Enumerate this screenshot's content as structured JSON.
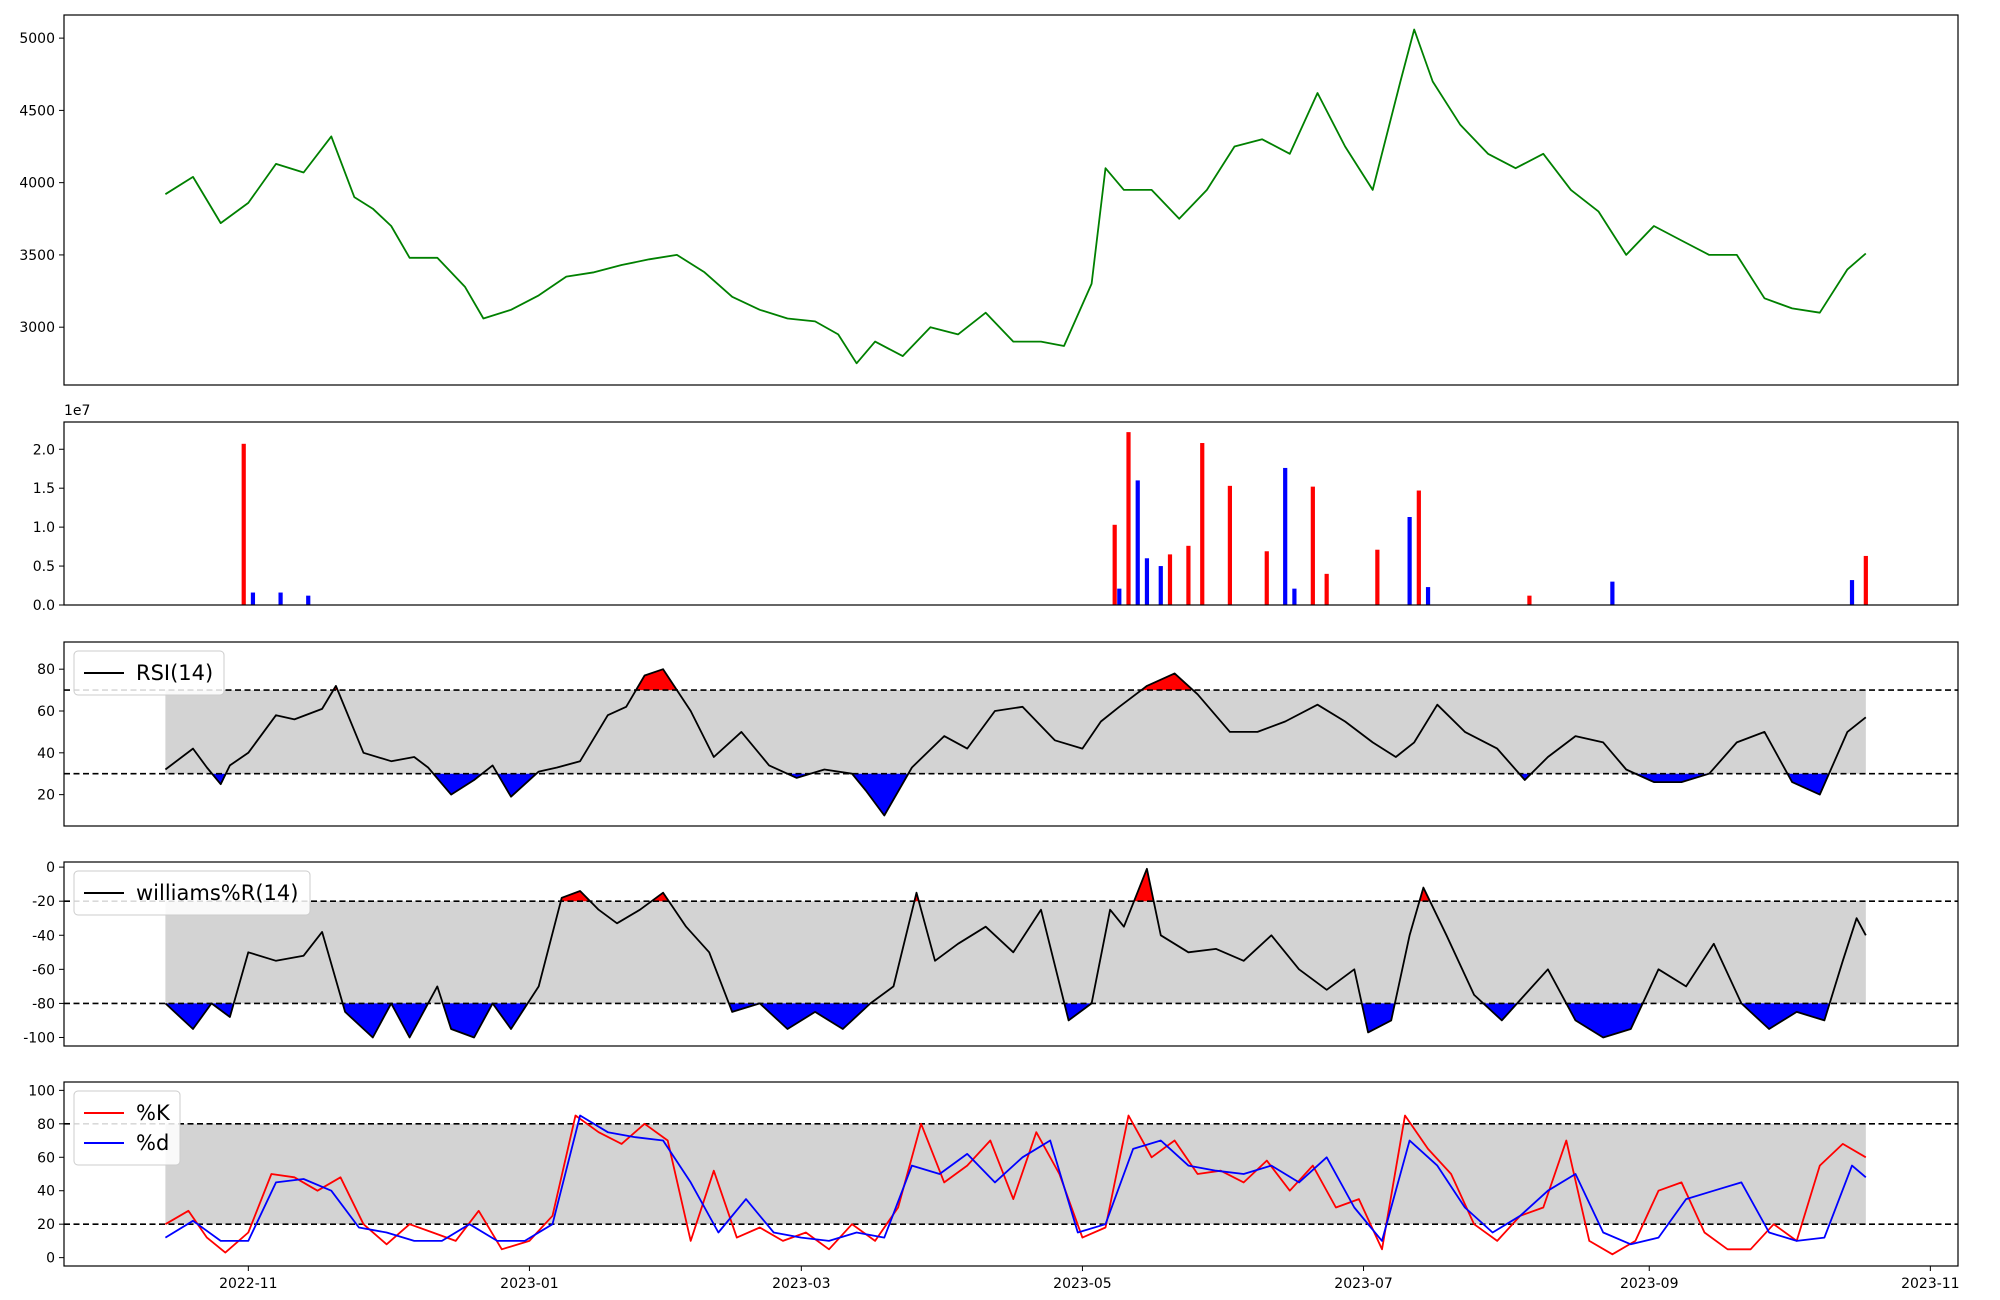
{
  "colors": {
    "close": "#008000",
    "up": "#ff0000",
    "down": "#0000ff",
    "band": "#d3d3d3",
    "line": "#000000"
  },
  "chart_data": [
    {
      "type": "line",
      "series": [
        {
          "x": [
            "2022-10-14",
            "2022-10-20",
            "2022-10-26",
            "2022-11-01",
            "2022-11-07",
            "2022-11-13",
            "2022-11-19",
            "2022-11-24",
            "2022-11-28",
            "2022-12-02",
            "2022-12-06",
            "2022-12-12",
            "2022-12-18",
            "2022-12-22",
            "2022-12-28",
            "2023-01-03",
            "2023-01-09",
            "2023-01-15",
            "2023-01-21",
            "2023-01-27",
            "2023-02-02",
            "2023-02-08",
            "2023-02-14",
            "2023-02-20",
            "2023-02-26",
            "2023-03-04",
            "2023-03-09",
            "2023-03-13",
            "2023-03-17",
            "2023-03-23",
            "2023-03-29",
            "2023-04-04",
            "2023-04-10",
            "2023-04-16",
            "2023-04-22",
            "2023-04-27",
            "2023-05-03",
            "2023-05-06",
            "2023-05-10",
            "2023-05-16",
            "2023-05-22",
            "2023-05-28",
            "2023-06-03",
            "2023-06-09",
            "2023-06-15",
            "2023-06-21",
            "2023-06-27",
            "2023-07-03",
            "2023-07-09",
            "2023-07-12",
            "2023-07-16",
            "2023-07-22",
            "2023-07-28",
            "2023-08-03",
            "2023-08-09",
            "2023-08-15",
            "2023-08-21",
            "2023-08-27",
            "2023-09-02",
            "2023-09-08",
            "2023-09-14",
            "2023-09-20",
            "2023-09-26",
            "2023-10-02",
            "2023-10-08",
            "2023-10-14",
            "2023-10-18"
          ],
          "y": [
            3920,
            4040,
            3720,
            3860,
            4130,
            4070,
            4320,
            3900,
            3820,
            3700,
            3480,
            3480,
            3280,
            3060,
            3120,
            3220,
            3350,
            3380,
            3430,
            3470,
            3500,
            3380,
            3210,
            3120,
            3060,
            3040,
            2950,
            2750,
            2900,
            2800,
            3000,
            2950,
            3100,
            2900,
            2900,
            2870,
            3300,
            4100,
            3950,
            3950,
            3750,
            3950,
            4250,
            4300,
            4200,
            4620,
            4250,
            3950,
            4700,
            5060,
            4700,
            4400,
            4200,
            4100,
            4200,
            3950,
            3800,
            3500,
            3700,
            3600,
            3500,
            3500,
            3200,
            3130,
            3100,
            3400,
            3510
          ]
        }
      ],
      "ylim": [
        2600,
        5160
      ],
      "yticks": [
        3000,
        3500,
        4000,
        4500,
        5000
      ]
    },
    {
      "type": "bar",
      "offset_label": "1e7",
      "ylim": [
        0,
        23500000
      ],
      "yticks": [
        0.0,
        0.5,
        1.0,
        1.5,
        2.0
      ],
      "series": [
        {
          "name": "",
          "direction": "up",
          "x": [
            "2022-10-31",
            "2023-05-08",
            "2023-05-11",
            "2023-05-20",
            "2023-05-24",
            "2023-05-27",
            "2023-06-02",
            "2023-06-10",
            "2023-06-20",
            "2023-06-23",
            "2023-07-04",
            "2023-07-13",
            "2023-08-06",
            "2023-10-18"
          ],
          "values": [
            20700000,
            10300000,
            22200000,
            6500000,
            7600000,
            20800000,
            15300000,
            6900000,
            15200000,
            4000000,
            7100000,
            14700000,
            1200000,
            6300000
          ]
        },
        {
          "name": "",
          "direction": "down",
          "x": [
            "2022-11-02",
            "2022-11-08",
            "2022-11-14",
            "2023-05-09",
            "2023-05-13",
            "2023-05-15",
            "2023-05-18",
            "2023-06-14",
            "2023-06-16",
            "2023-07-11",
            "2023-07-15",
            "2023-08-24",
            "2023-10-15"
          ],
          "values": [
            1600000,
            1600000,
            1200000,
            2100000,
            16000000,
            6000000,
            5000000,
            17600000,
            2100000,
            11300000,
            2300000,
            3000000,
            3200000
          ]
        }
      ]
    },
    {
      "type": "line",
      "legend": [
        "RSI(14)"
      ],
      "ylim": [
        5,
        93
      ],
      "yticks": [
        20,
        40,
        60,
        80
      ],
      "levels": [
        30,
        70
      ],
      "series": [
        {
          "name": "RSI(14)",
          "x": [
            "2022-10-14",
            "2022-10-20",
            "2022-10-23",
            "2022-10-26",
            "2022-10-28",
            "2022-11-01",
            "2022-11-07",
            "2022-11-11",
            "2022-11-17",
            "2022-11-20",
            "2022-11-26",
            "2022-12-02",
            "2022-12-07",
            "2022-12-10",
            "2022-12-15",
            "2022-12-20",
            "2022-12-24",
            "2022-12-28",
            "2023-01-03",
            "2023-01-07",
            "2023-01-12",
            "2023-01-18",
            "2023-01-22",
            "2023-01-26",
            "2023-01-30",
            "2023-02-05",
            "2023-02-10",
            "2023-02-16",
            "2023-02-22",
            "2023-02-28",
            "2023-03-06",
            "2023-03-12",
            "2023-03-15",
            "2023-03-19",
            "2023-03-25",
            "2023-04-01",
            "2023-04-06",
            "2023-04-12",
            "2023-04-18",
            "2023-04-25",
            "2023-05-01",
            "2023-05-05",
            "2023-05-09",
            "2023-05-15",
            "2023-05-21",
            "2023-05-26",
            "2023-06-02",
            "2023-06-08",
            "2023-06-14",
            "2023-06-21",
            "2023-06-27",
            "2023-07-03",
            "2023-07-08",
            "2023-07-12",
            "2023-07-17",
            "2023-07-23",
            "2023-07-30",
            "2023-08-05",
            "2023-08-10",
            "2023-08-16",
            "2023-08-22",
            "2023-08-27",
            "2023-09-02",
            "2023-09-08",
            "2023-09-14",
            "2023-09-20",
            "2023-09-26",
            "2023-10-02",
            "2023-10-08",
            "2023-10-14",
            "2023-10-18"
          ],
          "y": [
            32,
            42,
            33,
            25,
            34,
            40,
            58,
            56,
            61,
            72,
            40,
            36,
            38,
            33,
            20,
            27,
            34,
            19,
            31,
            33,
            36,
            58,
            62,
            77,
            80,
            60,
            38,
            50,
            34,
            28,
            32,
            30,
            22,
            10,
            33,
            48,
            42,
            60,
            62,
            46,
            42,
            55,
            62,
            72,
            78,
            68,
            50,
            50,
            55,
            63,
            55,
            45,
            38,
            45,
            63,
            50,
            42,
            27,
            38,
            48,
            45,
            32,
            26,
            26,
            30,
            45,
            50,
            26,
            20,
            50,
            57
          ]
        }
      ]
    },
    {
      "type": "line",
      "legend": [
        "williams%R(14)"
      ],
      "ylim": [
        -105,
        3
      ],
      "yticks": [
        0,
        -20,
        -40,
        -60,
        -80,
        -100
      ],
      "levels": [
        -20,
        -80
      ],
      "series": [
        {
          "name": "williams%R(14)",
          "x": [
            "2022-10-14",
            "2022-10-20",
            "2022-10-24",
            "2022-10-28",
            "2022-11-01",
            "2022-11-07",
            "2022-11-13",
            "2022-11-17",
            "2022-11-22",
            "2022-11-28",
            "2022-12-02",
            "2022-12-06",
            "2022-12-12",
            "2022-12-15",
            "2022-12-20",
            "2022-12-24",
            "2022-12-28",
            "2023-01-03",
            "2023-01-08",
            "2023-01-12",
            "2023-01-16",
            "2023-01-20",
            "2023-01-25",
            "2023-01-30",
            "2023-02-04",
            "2023-02-09",
            "2023-02-14",
            "2023-02-20",
            "2023-02-26",
            "2023-03-04",
            "2023-03-10",
            "2023-03-16",
            "2023-03-21",
            "2023-03-26",
            "2023-03-30",
            "2023-04-04",
            "2023-04-10",
            "2023-04-16",
            "2023-04-22",
            "2023-04-28",
            "2023-05-03",
            "2023-05-07",
            "2023-05-10",
            "2023-05-15",
            "2023-05-18",
            "2023-05-24",
            "2023-05-30",
            "2023-06-05",
            "2023-06-11",
            "2023-06-17",
            "2023-06-23",
            "2023-06-29",
            "2023-07-02",
            "2023-07-07",
            "2023-07-11",
            "2023-07-14",
            "2023-07-19",
            "2023-07-25",
            "2023-07-31",
            "2023-08-05",
            "2023-08-10",
            "2023-08-16",
            "2023-08-22",
            "2023-08-28",
            "2023-09-03",
            "2023-09-09",
            "2023-09-15",
            "2023-09-21",
            "2023-09-27",
            "2023-10-03",
            "2023-10-09",
            "2023-10-13",
            "2023-10-16",
            "2023-10-18"
          ],
          "y": [
            -80,
            -95,
            -80,
            -88,
            -50,
            -55,
            -52,
            -38,
            -85,
            -100,
            -80,
            -100,
            -70,
            -95,
            -100,
            -80,
            -95,
            -70,
            -18,
            -14,
            -25,
            -33,
            -25,
            -15,
            -35,
            -50,
            -85,
            -80,
            -95,
            -85,
            -95,
            -80,
            -70,
            -15,
            -55,
            -45,
            -35,
            -50,
            -25,
            -90,
            -80,
            -25,
            -35,
            -1,
            -40,
            -50,
            -48,
            -55,
            -40,
            -60,
            -72,
            -60,
            -97,
            -90,
            -40,
            -12,
            -40,
            -75,
            -90,
            -75,
            -60,
            -90,
            -100,
            -95,
            -60,
            -70,
            -45,
            -80,
            -95,
            -85,
            -90,
            -55,
            -30,
            -40
          ]
        }
      ]
    },
    {
      "type": "line",
      "legend": [
        "%K",
        "%d"
      ],
      "ylim": [
        -5,
        105
      ],
      "yticks": [
        0,
        20,
        40,
        60,
        80,
        100
      ],
      "levels": [
        20,
        80
      ],
      "xticks": [
        "2022-11",
        "2023-01",
        "2023-03",
        "2023-05",
        "2023-07",
        "2023-09",
        "2023-11"
      ],
      "series": [
        {
          "name": "%K",
          "color": "#ff0000",
          "x": [
            "2022-10-14",
            "2022-10-19",
            "2022-10-23",
            "2022-10-27",
            "2022-11-01",
            "2022-11-06",
            "2022-11-11",
            "2022-11-16",
            "2022-11-21",
            "2022-11-26",
            "2022-12-01",
            "2022-12-06",
            "2022-12-11",
            "2022-12-16",
            "2022-12-21",
            "2022-12-26",
            "2023-01-01",
            "2023-01-06",
            "2023-01-11",
            "2023-01-16",
            "2023-01-21",
            "2023-01-26",
            "2023-01-31",
            "2023-02-05",
            "2023-02-10",
            "2023-02-15",
            "2023-02-20",
            "2023-02-25",
            "2023-03-02",
            "2023-03-07",
            "2023-03-12",
            "2023-03-17",
            "2023-03-22",
            "2023-03-27",
            "2023-04-01",
            "2023-04-06",
            "2023-04-11",
            "2023-04-16",
            "2023-04-21",
            "2023-04-26",
            "2023-05-01",
            "2023-05-06",
            "2023-05-11",
            "2023-05-16",
            "2023-05-21",
            "2023-05-26",
            "2023-05-31",
            "2023-06-05",
            "2023-06-10",
            "2023-06-15",
            "2023-06-20",
            "2023-06-25",
            "2023-06-30",
            "2023-07-05",
            "2023-07-10",
            "2023-07-15",
            "2023-07-20",
            "2023-07-25",
            "2023-07-30",
            "2023-08-04",
            "2023-08-09",
            "2023-08-14",
            "2023-08-19",
            "2023-08-24",
            "2023-08-29",
            "2023-09-03",
            "2023-09-08",
            "2023-09-13",
            "2023-09-18",
            "2023-09-23",
            "2023-09-28",
            "2023-10-03",
            "2023-10-08",
            "2023-10-13",
            "2023-10-18"
          ],
          "y": [
            20,
            28,
            12,
            3,
            15,
            50,
            48,
            40,
            48,
            20,
            8,
            20,
            15,
            10,
            28,
            5,
            10,
            25,
            85,
            75,
            68,
            80,
            70,
            10,
            52,
            12,
            18,
            10,
            15,
            5,
            20,
            10,
            30,
            80,
            45,
            55,
            70,
            35,
            75,
            50,
            12,
            18,
            85,
            60,
            70,
            50,
            52,
            45,
            58,
            40,
            55,
            30,
            35,
            5,
            85,
            65,
            50,
            20,
            10,
            25,
            30,
            70,
            10,
            2,
            10,
            40,
            45,
            15,
            5,
            5,
            20,
            10,
            55,
            68,
            60
          ]
        },
        {
          "name": "%d",
          "color": "#0000ff",
          "x": [
            "2022-10-14",
            "2022-10-20",
            "2022-10-26",
            "2022-11-01",
            "2022-11-07",
            "2022-11-13",
            "2022-11-19",
            "2022-11-25",
            "2022-12-01",
            "2022-12-07",
            "2022-12-13",
            "2022-12-19",
            "2022-12-25",
            "2022-12-31",
            "2023-01-06",
            "2023-01-12",
            "2023-01-18",
            "2023-01-24",
            "2023-01-30",
            "2023-02-05",
            "2023-02-11",
            "2023-02-17",
            "2023-02-23",
            "2023-03-01",
            "2023-03-07",
            "2023-03-13",
            "2023-03-19",
            "2023-03-25",
            "2023-03-31",
            "2023-04-06",
            "2023-04-12",
            "2023-04-18",
            "2023-04-24",
            "2023-04-30",
            "2023-05-06",
            "2023-05-12",
            "2023-05-18",
            "2023-05-24",
            "2023-05-30",
            "2023-06-05",
            "2023-06-11",
            "2023-06-17",
            "2023-06-23",
            "2023-06-29",
            "2023-07-05",
            "2023-07-11",
            "2023-07-17",
            "2023-07-23",
            "2023-07-29",
            "2023-08-04",
            "2023-08-10",
            "2023-08-16",
            "2023-08-22",
            "2023-08-28",
            "2023-09-03",
            "2023-09-09",
            "2023-09-15",
            "2023-09-21",
            "2023-09-27",
            "2023-10-03",
            "2023-10-09",
            "2023-10-15",
            "2023-10-18"
          ],
          "y": [
            12,
            22,
            10,
            10,
            45,
            47,
            40,
            18,
            15,
            10,
            10,
            20,
            10,
            10,
            20,
            85,
            75,
            72,
            70,
            45,
            15,
            35,
            15,
            12,
            10,
            15,
            12,
            55,
            50,
            62,
            45,
            60,
            70,
            15,
            20,
            65,
            70,
            55,
            52,
            50,
            55,
            45,
            60,
            30,
            10,
            70,
            55,
            30,
            15,
            25,
            40,
            50,
            15,
            8,
            12,
            35,
            40,
            45,
            15,
            10,
            12,
            55,
            48
          ]
        }
      ]
    }
  ]
}
